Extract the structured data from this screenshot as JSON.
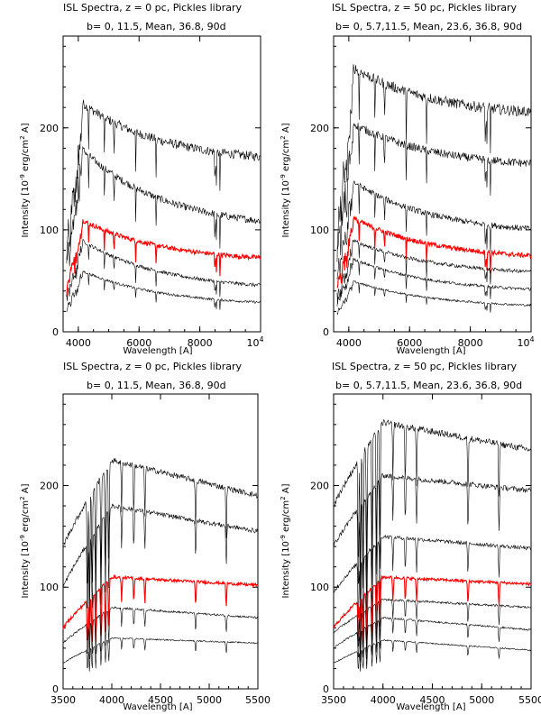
{
  "chart_data": [
    {
      "type": "line",
      "title": "ISL Spectra, z = 0 pc, Pickles library",
      "annotation": "b= 0, 11.5, Mean, 36.8, 90d",
      "xlabel": "Wavelength [A]",
      "ylabel_main": "Intensity [10",
      "ylabel_sup": "-9",
      "ylabel_unit": " erg/cm",
      "ylabel_sup2": "2",
      "ylabel_tail": " A]",
      "xlim": [
        3500,
        10000
      ],
      "ylim": [
        0,
        290
      ],
      "xticks": [
        4000,
        6000,
        8000
      ],
      "xtick_end_base": "10",
      "xtick_end_exp": "4",
      "yticks": [
        0,
        100,
        200
      ],
      "series": [
        {
          "name": "b=0",
          "color": "#000000",
          "peak": 225,
          "tail": 165
        },
        {
          "name": "b=11.5",
          "color": "#000000",
          "peak": 180,
          "tail": 100
        },
        {
          "name": "Mean",
          "color": "#ff0000",
          "peak": 110,
          "tail": 68
        },
        {
          "name": "b=36.8",
          "color": "#000000",
          "peak": 90,
          "tail": 40
        },
        {
          "name": "b=90",
          "color": "#000000",
          "peak": 60,
          "tail": 25
        }
      ]
    },
    {
      "type": "line",
      "title": "ISL Spectra, z = 50 pc, Pickles library",
      "annotation": "b= 0, 5.7,11.5, Mean, 23.6, 36.8, 90d",
      "xlabel": "Wavelength [A]",
      "ylabel_main": "Intensity [10",
      "ylabel_sup": "-9",
      "ylabel_unit": " erg/cm",
      "ylabel_sup2": "2",
      "ylabel_tail": " A]",
      "xlim": [
        3500,
        10000
      ],
      "ylim": [
        0,
        290
      ],
      "xticks": [
        4000,
        6000,
        8000
      ],
      "xtick_end_base": "10",
      "xtick_end_exp": "4",
      "yticks": [
        0,
        100,
        200
      ],
      "series": [
        {
          "name": "b=0",
          "color": "#000000",
          "peak": 260,
          "tail": 210
        },
        {
          "name": "b=5.7",
          "color": "#000000",
          "peak": 205,
          "tail": 160
        },
        {
          "name": "b=11.5",
          "color": "#000000",
          "peak": 148,
          "tail": 95
        },
        {
          "name": "Mean",
          "color": "#ff0000",
          "peak": 112,
          "tail": 70
        },
        {
          "name": "b=23.6",
          "color": "#000000",
          "peak": 90,
          "tail": 55
        },
        {
          "name": "b=36.8",
          "color": "#000000",
          "peak": 72,
          "tail": 38
        },
        {
          "name": "b=90",
          "color": "#000000",
          "peak": 50,
          "tail": 23
        }
      ]
    },
    {
      "type": "line",
      "title": "ISL Spectra, z = 0 pc, Pickles library",
      "annotation": "b= 0, 11.5, Mean, 36.8, 90d",
      "xlabel": "Wavelength [A]",
      "ylabel_main": "Intensity [10",
      "ylabel_sup": "-9",
      "ylabel_unit": " erg/cm",
      "ylabel_sup2": "2",
      "ylabel_tail": " A]",
      "xlim": [
        3500,
        5500
      ],
      "ylim": [
        0,
        290
      ],
      "xticks": [
        3500,
        4000,
        4500,
        5000,
        5500
      ],
      "yticks": [
        0,
        100,
        200
      ],
      "series": [
        {
          "name": "b=0",
          "color": "#000000",
          "start": 140,
          "peak": 225,
          "end": 190
        },
        {
          "name": "b=11.5",
          "color": "#000000",
          "start": 100,
          "peak": 180,
          "end": 155
        },
        {
          "name": "Mean",
          "color": "#ff0000",
          "start": 60,
          "peak": 110,
          "end": 102
        },
        {
          "name": "b=36.8",
          "color": "#000000",
          "start": 45,
          "peak": 80,
          "end": 70
        },
        {
          "name": "b=90",
          "color": "#000000",
          "start": 25,
          "peak": 50,
          "end": 45
        }
      ]
    },
    {
      "type": "line",
      "title": "ISL Spectra, z = 50 pc, Pickles library",
      "annotation": "b= 0, 5.7,11.5, Mean, 23.6, 36.8, 90d",
      "xlabel": "Wavelength [A]",
      "ylabel_main": "Intensity [10",
      "ylabel_sup": "-9",
      "ylabel_unit": " erg/cm",
      "ylabel_sup2": "2",
      "ylabel_tail": " A]",
      "xlim": [
        3500,
        5500
      ],
      "ylim": [
        0,
        290
      ],
      "xticks": [
        3500,
        4000,
        4500,
        5000,
        5500
      ],
      "yticks": [
        0,
        100,
        200
      ],
      "series": [
        {
          "name": "b=0",
          "color": "#000000",
          "start": 180,
          "peak": 262,
          "end": 235
        },
        {
          "name": "b=5.7",
          "color": "#000000",
          "start": 140,
          "peak": 210,
          "end": 195
        },
        {
          "name": "b=11.5",
          "color": "#000000",
          "start": 95,
          "peak": 150,
          "end": 138
        },
        {
          "name": "Mean",
          "color": "#ff0000",
          "start": 60,
          "peak": 110,
          "end": 103
        },
        {
          "name": "b=23.6",
          "color": "#000000",
          "start": 55,
          "peak": 88,
          "end": 80
        },
        {
          "name": "b=36.8",
          "color": "#000000",
          "start": 40,
          "peak": 70,
          "end": 58
        },
        {
          "name": "b=90",
          "color": "#000000",
          "start": 25,
          "peak": 48,
          "end": 38
        }
      ]
    }
  ]
}
